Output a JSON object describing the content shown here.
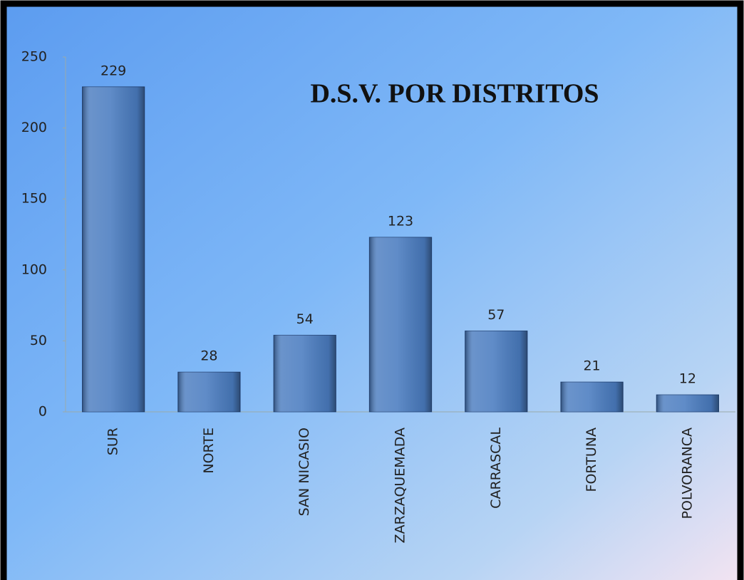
{
  "chart_data": {
    "type": "bar",
    "title": "D.S.V.  POR DISTRITOS",
    "categories": [
      "SUR",
      "NORTE",
      "SAN NICASIO",
      "ZARZAQUEMADA",
      "CARRASCAL",
      "FORTUNA",
      "POLVORANCA"
    ],
    "values": [
      229,
      28,
      54,
      123,
      57,
      21,
      12
    ],
    "color": "#4a7cc0",
    "ylim": [
      0,
      250
    ],
    "yticks": [
      0,
      50,
      100,
      150,
      200,
      250
    ],
    "grid": false
  }
}
